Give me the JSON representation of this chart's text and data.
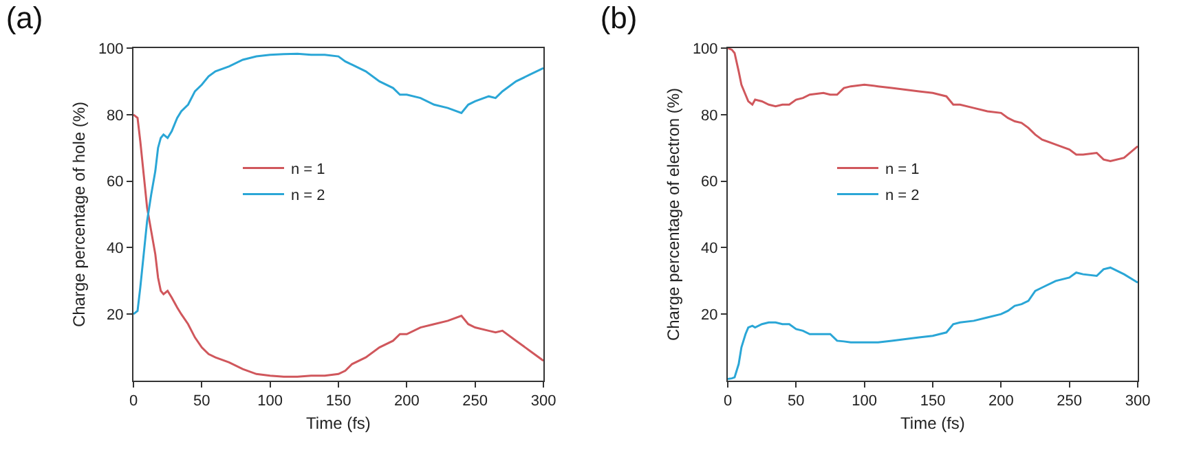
{
  "chart_data": [
    {
      "type": "line",
      "title": "(a)",
      "xlabel": "Time (fs)",
      "ylabel": "Charge percentage of hole (%)",
      "xlim": [
        0,
        300
      ],
      "xticks": [
        0,
        50,
        100,
        150,
        200,
        250,
        300
      ],
      "ylim": [
        0,
        100
      ],
      "yticks": [
        20,
        40,
        60,
        80,
        100
      ],
      "grid": false,
      "legend": "left",
      "marker": "none",
      "line_style": "solid",
      "x": [
        0,
        3,
        5,
        8,
        10,
        13,
        16,
        18,
        20,
        22,
        25,
        28,
        32,
        35,
        40,
        45,
        50,
        55,
        60,
        70,
        80,
        90,
        100,
        110,
        120,
        130,
        140,
        150,
        155,
        160,
        170,
        180,
        190,
        195,
        200,
        210,
        220,
        230,
        240,
        245,
        250,
        260,
        265,
        270,
        280,
        290,
        300
      ],
      "series": [
        {
          "name": "n = 1",
          "color": "#d0575c",
          "values": [
            80,
            79,
            72,
            60,
            52,
            45,
            38,
            31,
            27,
            26,
            27,
            25,
            22,
            20,
            17,
            13,
            10,
            8,
            7,
            5.5,
            3.5,
            2,
            1.5,
            1.2,
            1.2,
            1.5,
            1.5,
            2,
            3,
            5,
            7,
            10,
            12,
            14,
            14,
            16,
            17,
            18,
            19.5,
            17,
            16,
            15,
            14.5,
            15,
            12,
            9,
            6
          ]
        },
        {
          "name": "n = 2",
          "color": "#2aa6d6",
          "values": [
            20,
            21,
            28,
            40,
            48,
            56,
            63,
            70,
            73,
            74,
            73,
            75,
            79,
            81,
            83,
            87,
            89,
            91.5,
            93,
            94.5,
            96.5,
            97.5,
            98,
            98.2,
            98.3,
            98,
            98,
            97.5,
            96,
            95,
            93,
            90,
            88,
            86,
            86,
            85,
            83,
            82,
            80.5,
            83,
            84,
            85.5,
            85,
            87,
            90,
            92,
            94
          ]
        }
      ]
    },
    {
      "type": "line",
      "title": "(b)",
      "xlabel": "Time (fs)",
      "ylabel": "Charge percentage of electron (%)",
      "xlim": [
        0,
        300
      ],
      "xticks": [
        0,
        50,
        100,
        150,
        200,
        250,
        300
      ],
      "ylim": [
        0,
        100
      ],
      "yticks": [
        20,
        40,
        60,
        80,
        100
      ],
      "grid": false,
      "legend": "left",
      "marker": "none",
      "line_style": "solid",
      "x": [
        0,
        3,
        5,
        8,
        10,
        13,
        15,
        18,
        20,
        25,
        30,
        35,
        40,
        45,
        50,
        55,
        60,
        70,
        75,
        80,
        85,
        90,
        100,
        110,
        120,
        130,
        140,
        150,
        155,
        160,
        165,
        170,
        180,
        190,
        200,
        205,
        210,
        215,
        220,
        225,
        230,
        240,
        250,
        255,
        260,
        270,
        275,
        280,
        290,
        300
      ],
      "series": [
        {
          "name": "n = 1",
          "color": "#d0575c",
          "values": [
            100,
            99.5,
            98.5,
            93,
            89,
            86,
            84,
            83,
            84.5,
            84,
            83,
            82.5,
            83,
            83,
            84.5,
            85,
            86,
            86.5,
            86,
            86,
            88,
            88.5,
            89,
            88.5,
            88,
            87.5,
            87,
            86.5,
            86,
            85.5,
            83,
            83,
            82,
            81,
            80.5,
            79,
            78,
            77.5,
            76,
            74,
            72.5,
            71,
            69.5,
            68,
            68,
            68.5,
            66.5,
            66,
            67,
            70.5
          ]
        },
        {
          "name": "n = 2",
          "color": "#2aa6d6",
          "values": [
            0.5,
            0.7,
            1,
            5,
            10,
            14,
            16,
            16.5,
            16,
            17,
            17.5,
            17.5,
            17,
            17,
            15.5,
            15,
            14,
            14,
            14,
            12,
            11.8,
            11.5,
            11.5,
            11.5,
            12,
            12.5,
            13,
            13.5,
            14,
            14.5,
            17,
            17.5,
            18,
            19,
            20,
            21,
            22.5,
            23,
            24,
            27,
            28,
            30,
            31,
            32.5,
            32,
            31.5,
            33.5,
            34,
            32,
            29.5
          ]
        }
      ]
    }
  ]
}
